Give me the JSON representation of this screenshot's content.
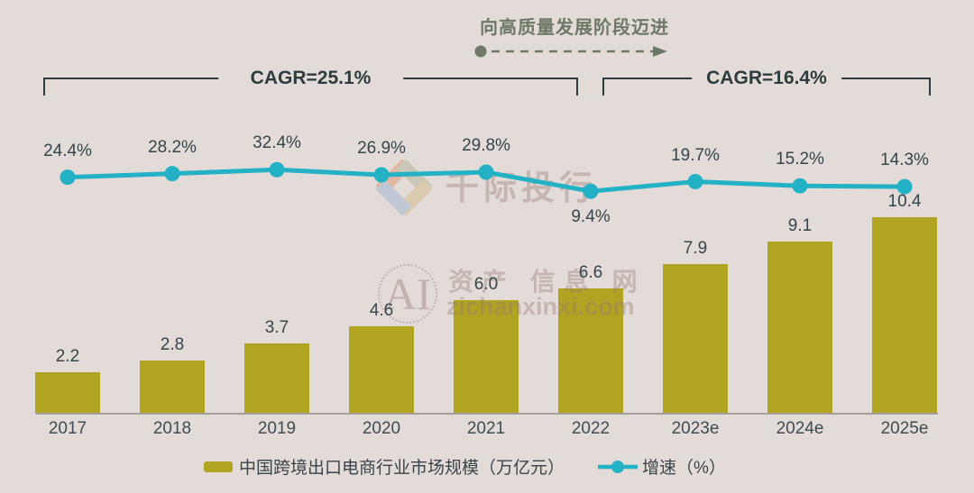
{
  "header": {
    "stage_label": "向高质量发展阶段迈进",
    "cagr_left": "CAGR=25.1%",
    "cagr_right": "CAGR=16.4%"
  },
  "watermarks": {
    "brand_cn": "千际投行",
    "ai_monogram": "AI",
    "site_cn": "资产 信息 网",
    "site_url": "zichanxinxi.com"
  },
  "chart_data": {
    "type": "bar+line",
    "categories": [
      "2017",
      "2018",
      "2019",
      "2020",
      "2021",
      "2022",
      "2023e",
      "2024e",
      "2025e"
    ],
    "series": [
      {
        "name": "中国跨境出口电商行业市场规模（万亿元）",
        "type": "bar",
        "values": [
          2.2,
          2.8,
          3.7,
          4.6,
          6.0,
          6.6,
          7.9,
          9.1,
          10.4
        ],
        "color": "#b1a423"
      },
      {
        "name": "增速（%）",
        "type": "line",
        "values": [
          24.4,
          28.2,
          32.4,
          26.9,
          29.8,
          9.4,
          19.7,
          15.2,
          14.3
        ],
        "color": "#23b1c6"
      }
    ],
    "bar_label_format": "one_decimal",
    "line_label_format": "one_decimal_percent",
    "line_label_below_index": 5,
    "title": "向高质量发展阶段迈进",
    "xlabel": "",
    "ylabel": "",
    "grid": false,
    "legend_position": "bottom",
    "bar_axis_range": [
      0,
      11
    ],
    "annotations": [
      {
        "text": "CAGR=25.1%",
        "span_categories": [
          "2017",
          "2022"
        ]
      },
      {
        "text": "CAGR=16.4%",
        "span_categories": [
          "2023e",
          "2025e"
        ]
      }
    ]
  },
  "colors": {
    "background": "#e3dbd7",
    "bar": "#b1a423",
    "line": "#23b1c6",
    "bracket": "#2c3b3e",
    "annotation_green": "#6d7866",
    "text_dark": "#35454a"
  }
}
